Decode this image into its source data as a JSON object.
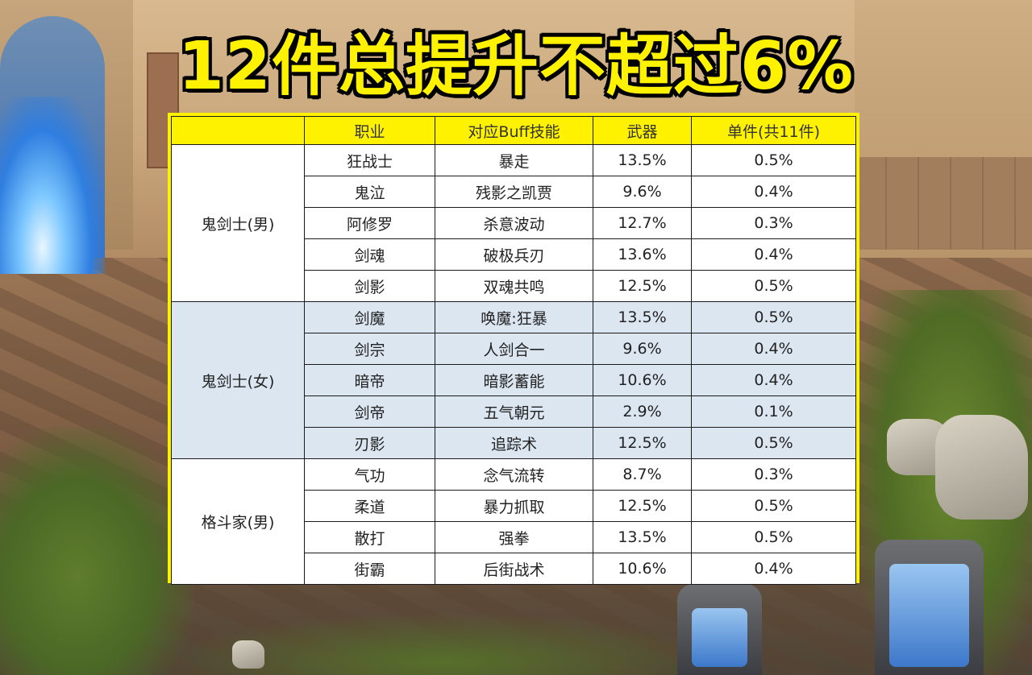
{
  "headline": "12件总提升不超过6%",
  "table": {
    "headers": [
      "",
      "职业",
      "对应Buff技能",
      "武器",
      "单件(共11件)"
    ],
    "groups": [
      {
        "class": "鬼剑士(男)",
        "rows": [
          {
            "job": "狂战士",
            "skill": "暴走",
            "weapon": "13.5%",
            "piece": "0.5%"
          },
          {
            "job": "鬼泣",
            "skill": "残影之凯贾",
            "weapon": "9.6%",
            "piece": "0.4%"
          },
          {
            "job": "阿修罗",
            "skill": "杀意波动",
            "weapon": "12.7%",
            "piece": "0.3%"
          },
          {
            "job": "剑魂",
            "skill": "破极兵刃",
            "weapon": "13.6%",
            "piece": "0.4%"
          },
          {
            "job": "剑影",
            "skill": "双魂共鸣",
            "weapon": "12.5%",
            "piece": "0.5%"
          }
        ]
      },
      {
        "class": "鬼剑士(女)",
        "rows": [
          {
            "job": "剑魔",
            "skill": "唤魔:狂暴",
            "weapon": "13.5%",
            "piece": "0.5%"
          },
          {
            "job": "剑宗",
            "skill": "人剑合一",
            "weapon": "9.6%",
            "piece": "0.4%"
          },
          {
            "job": "暗帝",
            "skill": "暗影蓄能",
            "weapon": "10.6%",
            "piece": "0.4%"
          },
          {
            "job": "剑帝",
            "skill": "五气朝元",
            "weapon": "2.9%",
            "piece": "0.1%"
          },
          {
            "job": "刃影",
            "skill": "追踪术",
            "weapon": "12.5%",
            "piece": "0.5%"
          }
        ]
      },
      {
        "class": "格斗家(男)",
        "rows": [
          {
            "job": "气功",
            "skill": "念气流转",
            "weapon": "8.7%",
            "piece": "0.3%"
          },
          {
            "job": "柔道",
            "skill": "暴力抓取",
            "weapon": "12.5%",
            "piece": "0.5%"
          },
          {
            "job": "散打",
            "skill": "强拳",
            "weapon": "13.5%",
            "piece": "0.5%"
          },
          {
            "job": "街霸",
            "skill": "后街战术",
            "weapon": "10.6%",
            "piece": "0.4%"
          }
        ]
      }
    ]
  },
  "colors": {
    "headline": "#fff200",
    "header_bg": "#fff200",
    "group_white": "#ffffff",
    "group_blue": "#dce6f1"
  }
}
